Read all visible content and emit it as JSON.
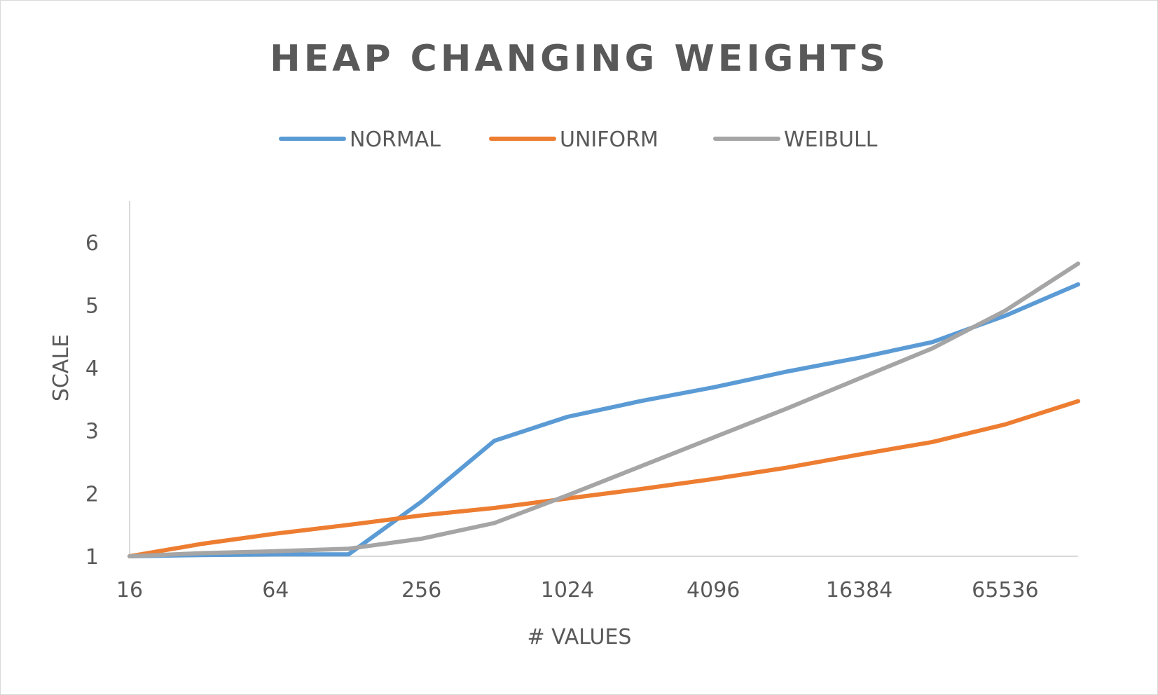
{
  "chart_data": {
    "type": "line",
    "title": "HEAP CHANGING WEIGHTS",
    "xlabel": "# VALUES",
    "ylabel": "SCALE",
    "x_scale": "log2",
    "x": [
      16,
      32,
      64,
      128,
      256,
      512,
      1024,
      2048,
      4096,
      8192,
      16384,
      32768,
      65536,
      131072
    ],
    "x_tick_labels": [
      "16",
      "64",
      "256",
      "1024",
      "4096",
      "16384",
      "65536"
    ],
    "x_tick_values": [
      16,
      64,
      256,
      1024,
      4096,
      16384,
      65536
    ],
    "ylim": [
      1,
      6.5
    ],
    "y_ticks": [
      1,
      2,
      3,
      4,
      5,
      6
    ],
    "grid": false,
    "legend_position": "top",
    "series": [
      {
        "name": "NORMAL",
        "color": "#5b9bd5",
        "values": [
          1.0,
          1.02,
          1.03,
          1.03,
          1.87,
          2.84,
          3.22,
          3.47,
          3.69,
          3.94,
          4.16,
          4.41,
          4.83,
          5.33
        ]
      },
      {
        "name": "UNIFORM",
        "color": "#ed7d31",
        "values": [
          1.0,
          1.2,
          1.36,
          1.5,
          1.65,
          1.77,
          1.92,
          2.07,
          2.23,
          2.41,
          2.62,
          2.82,
          3.1,
          3.47
        ]
      },
      {
        "name": "WEIBULL",
        "color": "#a5a5a5",
        "values": [
          1.0,
          1.05,
          1.08,
          1.12,
          1.28,
          1.53,
          1.97,
          2.43,
          2.89,
          3.35,
          3.83,
          4.31,
          4.91,
          5.66
        ]
      }
    ]
  }
}
